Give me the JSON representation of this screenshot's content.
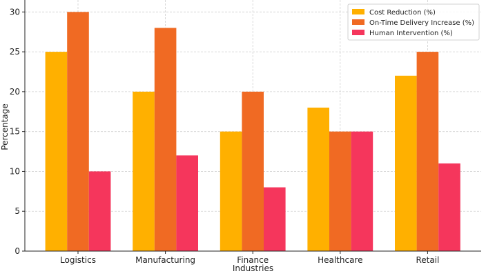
{
  "chart_data": {
    "type": "bar",
    "title": "",
    "xlabel": "Industries",
    "ylabel": "Percentage",
    "categories": [
      "Logistics",
      "Manufacturing",
      "Finance",
      "Healthcare",
      "Retail"
    ],
    "series": [
      {
        "name": "Cost Reduction (%)",
        "color": "#ffb000",
        "values": [
          25,
          20,
          15,
          18,
          22
        ]
      },
      {
        "name": "On-Time Delivery Increase (%)",
        "color": "#f06a23",
        "values": [
          30,
          28,
          20,
          15,
          25
        ]
      },
      {
        "name": "Human Intervention (%)",
        "color": "#f5365c",
        "values": [
          10,
          12,
          8,
          15,
          11
        ]
      }
    ],
    "ylim": [
      0,
      31.5
    ],
    "yticks": [
      0,
      5,
      10,
      15,
      20,
      25,
      30
    ],
    "grid": true,
    "legend_position": "top-right"
  }
}
